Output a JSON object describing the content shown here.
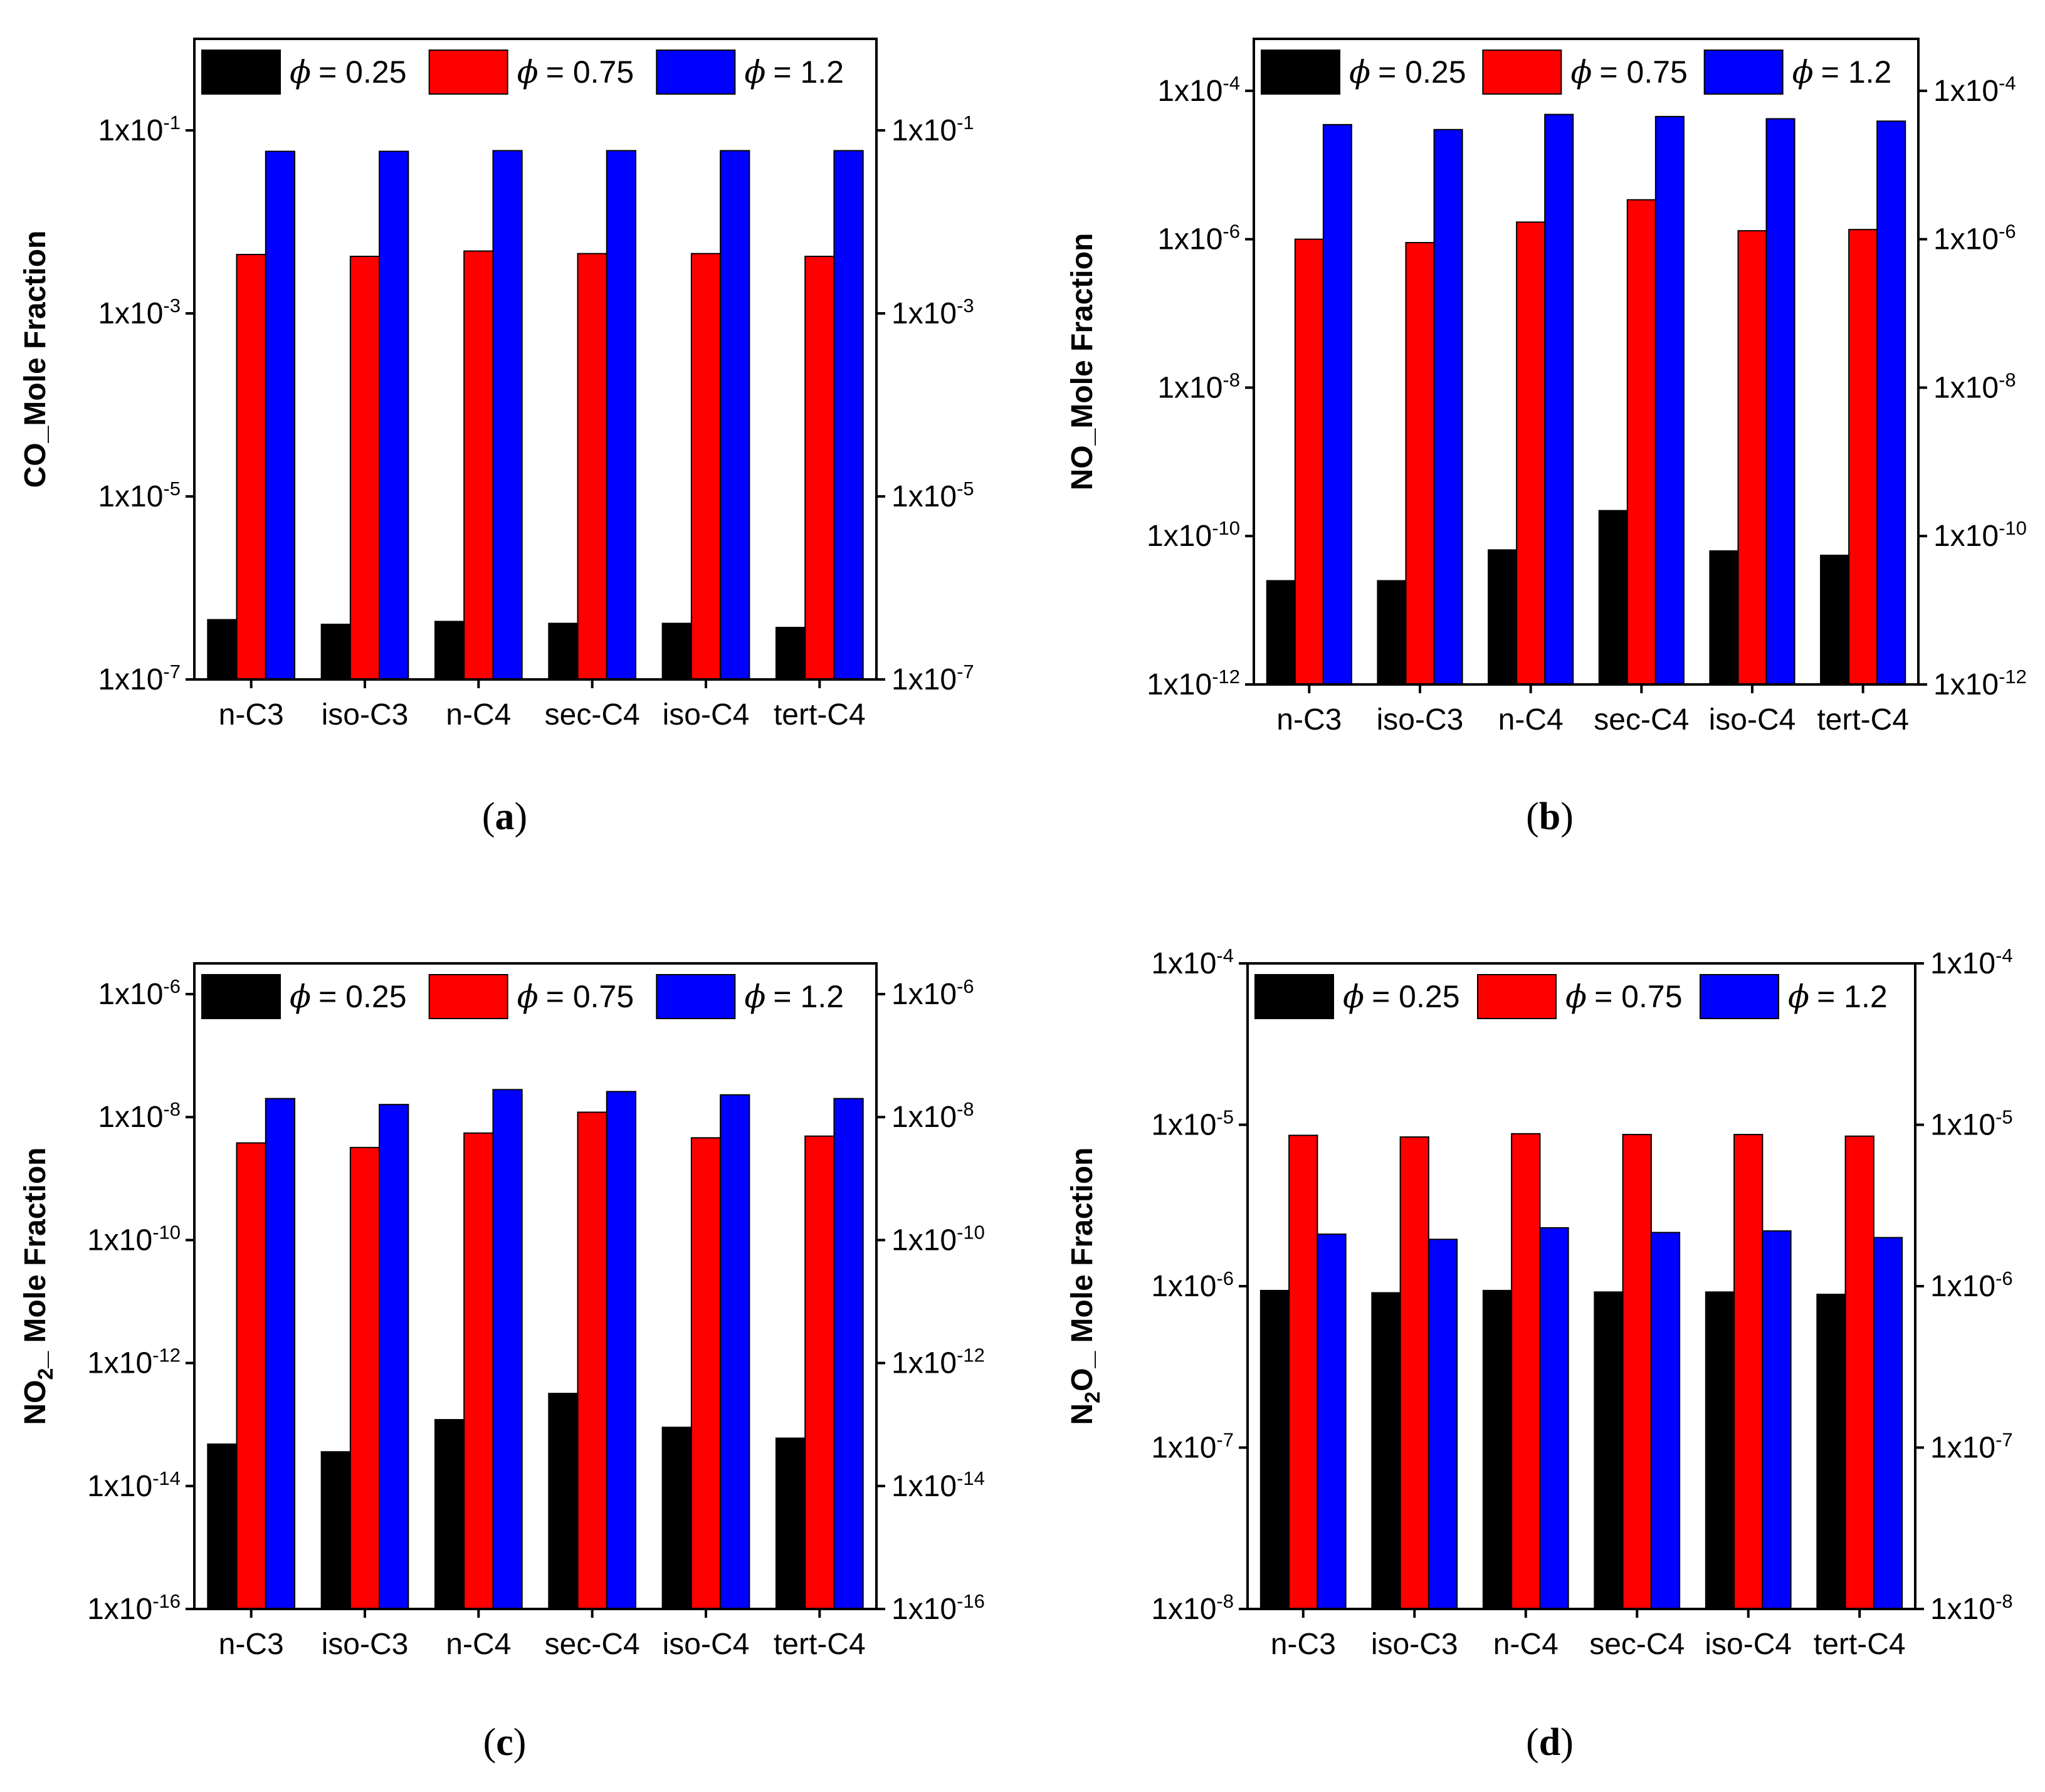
{
  "legend": {
    "symbol": "ϕ",
    "entries": [
      {
        "text": "= 0.25",
        "color": "#000000"
      },
      {
        "text": "= 0.75",
        "color": "#ff0000"
      },
      {
        "text": "= 1.2",
        "color": "#0000ff"
      }
    ]
  },
  "captions": {
    "a": {
      "open": "(",
      "letter": "a",
      "close": ")"
    },
    "b": {
      "open": "(",
      "letter": "b",
      "close": ")"
    },
    "c": {
      "open": "(",
      "letter": "c",
      "close": ")"
    },
    "d": {
      "open": "(",
      "letter": "d",
      "close": ")"
    }
  },
  "chart_data": [
    {
      "id": "a",
      "type": "bar",
      "scale": "log",
      "ylabel": {
        "main": "CO_Mole Fraction"
      },
      "categories": [
        "n-C3",
        "iso-C3",
        "n-C4",
        "sec-C4",
        "iso-C4",
        "tert-C4"
      ],
      "ylim_exp": [
        -7,
        0
      ],
      "tick_exps": [
        -7,
        -5,
        -3,
        -1
      ],
      "series": [
        {
          "name": "ϕ = 0.25",
          "color": "#000000",
          "values": [
            4.5e-07,
            4e-07,
            4.3e-07,
            4.1e-07,
            4.1e-07,
            3.7e-07
          ]
        },
        {
          "name": "ϕ = 0.75",
          "color": "#ff0000",
          "values": [
            0.0044,
            0.0042,
            0.0048,
            0.0045,
            0.0045,
            0.0042
          ]
        },
        {
          "name": "ϕ = 1.2",
          "color": "#0000ff",
          "values": [
            0.059,
            0.059,
            0.06,
            0.06,
            0.06,
            0.06
          ]
        }
      ]
    },
    {
      "id": "b",
      "type": "bar",
      "scale": "log",
      "ylabel": {
        "main": "NO_Mole Fraction"
      },
      "categories": [
        "n-C3",
        "iso-C3",
        "n-C4",
        "sec-C4",
        "iso-C4",
        "tert-C4"
      ],
      "ylim_exp": [
        -12,
        -3.3
      ],
      "tick_exps": [
        -12,
        -10,
        -8,
        -6,
        -4
      ],
      "series": [
        {
          "name": "ϕ = 0.25",
          "color": "#000000",
          "values": [
            2.5e-11,
            2.5e-11,
            6.5e-11,
            2.2e-10,
            6.3e-11,
            5.5e-11
          ]
        },
        {
          "name": "ϕ = 0.75",
          "color": "#ff0000",
          "values": [
            1e-06,
            9e-07,
            1.7e-06,
            3.4e-06,
            1.3e-06,
            1.35e-06
          ]
        },
        {
          "name": "ϕ = 1.2",
          "color": "#0000ff",
          "values": [
            3.5e-05,
            3e-05,
            4.8e-05,
            4.5e-05,
            4.2e-05,
            3.9e-05
          ]
        }
      ]
    },
    {
      "id": "c",
      "type": "bar",
      "scale": "log",
      "ylabel": {
        "pre": "NO",
        "sub": "2",
        "post": "_ Mole Fraction"
      },
      "categories": [
        "n-C3",
        "iso-C3",
        "n-C4",
        "sec-C4",
        "iso-C4",
        "tert-C4"
      ],
      "ylim_exp": [
        -16,
        -5.5
      ],
      "tick_exps": [
        -16,
        -14,
        -12,
        -10,
        -8,
        -6
      ],
      "series": [
        {
          "name": "ϕ = 0.25",
          "color": "#000000",
          "values": [
            4.8e-14,
            3.6e-14,
            1.2e-13,
            3.2e-13,
            9e-14,
            6e-14
          ]
        },
        {
          "name": "ϕ = 0.75",
          "color": "#ff0000",
          "values": [
            3.8e-09,
            3.2e-09,
            5.5e-09,
            1.2e-08,
            4.6e-09,
            4.9e-09
          ]
        },
        {
          "name": "ϕ = 1.2",
          "color": "#0000ff",
          "values": [
            2e-08,
            1.6e-08,
            2.8e-08,
            2.6e-08,
            2.3e-08,
            2e-08
          ]
        }
      ]
    },
    {
      "id": "d",
      "type": "bar",
      "scale": "log",
      "ylabel": {
        "pre": "N",
        "sub": "2",
        "post": "O_ Mole Fraction"
      },
      "categories": [
        "n-C3",
        "iso-C3",
        "n-C4",
        "sec-C4",
        "iso-C4",
        "tert-C4"
      ],
      "ylim_exp": [
        -8,
        -4
      ],
      "tick_exps": [
        -8,
        -7,
        -6,
        -5,
        -4
      ],
      "series": [
        {
          "name": "ϕ = 0.25",
          "color": "#000000",
          "values": [
            9.4e-07,
            9.1e-07,
            9.4e-07,
            9.2e-07,
            9.2e-07,
            8.9e-07
          ]
        },
        {
          "name": "ϕ = 0.75",
          "color": "#ff0000",
          "values": [
            8.6e-06,
            8.4e-06,
            8.8e-06,
            8.7e-06,
            8.7e-06,
            8.5e-06
          ]
        },
        {
          "name": "ϕ = 1.2",
          "color": "#0000ff",
          "values": [
            2.1e-06,
            1.95e-06,
            2.3e-06,
            2.15e-06,
            2.2e-06,
            2e-06
          ]
        }
      ]
    }
  ]
}
